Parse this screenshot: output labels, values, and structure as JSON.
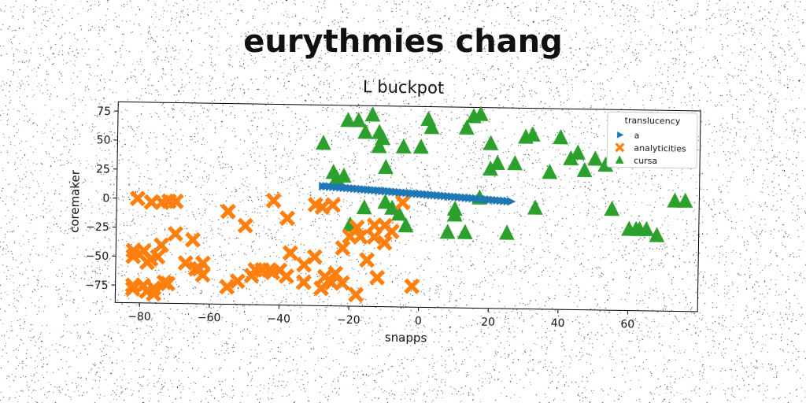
{
  "suptitle": "eurythmies chang",
  "chart_data": {
    "type": "scatter",
    "title": "L buckpot",
    "xlabel": "snapps",
    "ylabel": "coremaker",
    "xlim": [
      -87,
      80
    ],
    "ylim": [
      -90,
      83
    ],
    "xticks": [
      -80,
      -60,
      -40,
      -20,
      0,
      20,
      40,
      60
    ],
    "yticks": [
      75,
      50,
      25,
      0,
      -25,
      -50,
      -75
    ],
    "xtick_labels": [
      "−80",
      "−60",
      "−40",
      "−20",
      "0",
      "20",
      "40",
      "60"
    ],
    "ytick_labels": [
      "75",
      "50",
      "25",
      "0",
      "−25",
      "−50",
      "−75"
    ],
    "legend": {
      "title": "translucency",
      "placement": "top-right"
    },
    "series": [
      {
        "name": "a",
        "marker": "triangle-right",
        "color": "#1f77b4",
        "x": [
          -28,
          -27,
          -26,
          -25,
          -24,
          -23,
          -22,
          -21,
          -20,
          -19,
          -18,
          -17,
          -16,
          -15,
          -14,
          -13,
          -12,
          -11,
          -10,
          -9,
          -8,
          -7,
          -6,
          -5,
          -4,
          -3,
          -2,
          -1,
          0,
          1,
          2,
          3,
          4,
          5,
          6,
          7,
          8,
          9,
          10,
          11,
          12,
          13,
          14,
          15,
          16,
          17,
          18,
          19,
          20,
          21,
          22,
          23,
          24,
          25,
          26
        ],
        "y": [
          13,
          13,
          12.8,
          12.6,
          12.4,
          12.2,
          12,
          11.8,
          11.6,
          11.4,
          11.2,
          11,
          10.8,
          10.6,
          10.4,
          10.2,
          10,
          9.8,
          9.6,
          9.4,
          9.2,
          9,
          8.8,
          8.6,
          8.4,
          8.2,
          8,
          7.8,
          7.6,
          7.4,
          7.2,
          7,
          6.8,
          6.6,
          6.4,
          6.2,
          6,
          5.8,
          5.6,
          5.4,
          5.2,
          5,
          4.8,
          4.6,
          4.4,
          4.2,
          4,
          3.8,
          3.6,
          3.4,
          3.2,
          3,
          2.8,
          2.6,
          2.4
        ]
      },
      {
        "name": "analyticities",
        "marker": "x-filled",
        "color": "#ff7f0e",
        "x": [
          -81,
          -77,
          -74,
          -72,
          -70,
          -82,
          -79,
          -77,
          -74,
          -70,
          -82,
          -78,
          -75,
          -65,
          -62,
          -55,
          -50,
          -45,
          -42,
          -38,
          -33,
          -30,
          -28,
          -25,
          -20,
          -17,
          -13,
          -10,
          -8,
          -5,
          -82,
          -78,
          -76,
          -72,
          -67,
          -64,
          -62,
          -52,
          -47,
          -43,
          -40,
          -37,
          -33,
          -28,
          -25,
          -22,
          -18,
          -15,
          -13,
          -10,
          -82,
          -79,
          -76,
          -73,
          -63,
          -55,
          -48,
          -42,
          -38,
          -30,
          -27,
          -24,
          -22,
          -18,
          -12,
          -2
        ],
        "y": [
          0,
          -3,
          -3,
          -2,
          -2,
          -45,
          -45,
          -52,
          -40,
          -30,
          -50,
          -55,
          -50,
          -35,
          -55,
          -10,
          -22,
          -60,
          0,
          -15,
          -55,
          -3,
          -5,
          -3,
          -30,
          -30,
          -30,
          -20,
          -25,
          0,
          -75,
          -80,
          -82,
          -73,
          -55,
          -60,
          -65,
          -70,
          -60,
          -60,
          -60,
          -45,
          -70,
          -75,
          -70,
          -40,
          -22,
          -50,
          -20,
          -35,
          -78,
          -75,
          -77,
          -72,
          -60,
          -75,
          -65,
          -62,
          -65,
          -48,
          -65,
          -62,
          -70,
          -80,
          -65,
          -72
        ]
      },
      {
        "name": "cursa",
        "marker": "triangle-up",
        "color": "#2ca02c",
        "x": [
          -14,
          -21,
          -12,
          -10,
          -5,
          0,
          2,
          8,
          13,
          15,
          17,
          20,
          22,
          -28,
          -25,
          -22,
          -18,
          -16,
          -10,
          -8,
          -6,
          -4,
          -12,
          3,
          10,
          13,
          17,
          20,
          32,
          37,
          40,
          43,
          47,
          50,
          55,
          60,
          63,
          68,
          70,
          73,
          30,
          27,
          -20,
          -24,
          -16,
          -11,
          25,
          10,
          33,
          45,
          53,
          62,
          65,
          76
        ],
        "y": [
          75,
          70,
          60,
          30,
          48,
          48,
          72,
          -25,
          65,
          75,
          77,
          52,
          35,
          50,
          25,
          22,
          70,
          60,
          0,
          -5,
          -10,
          -20,
          48,
          65,
          -10,
          -25,
          5,
          30,
          60,
          28,
          58,
          40,
          30,
          40,
          -3,
          -20,
          -20,
          -25,
          60,
          5,
          58,
          35,
          -20,
          20,
          -5,
          55,
          -25,
          -5,
          -3,
          45,
          35,
          -20,
          -20,
          5
        ],
        "y_note": ""
      }
    ]
  }
}
